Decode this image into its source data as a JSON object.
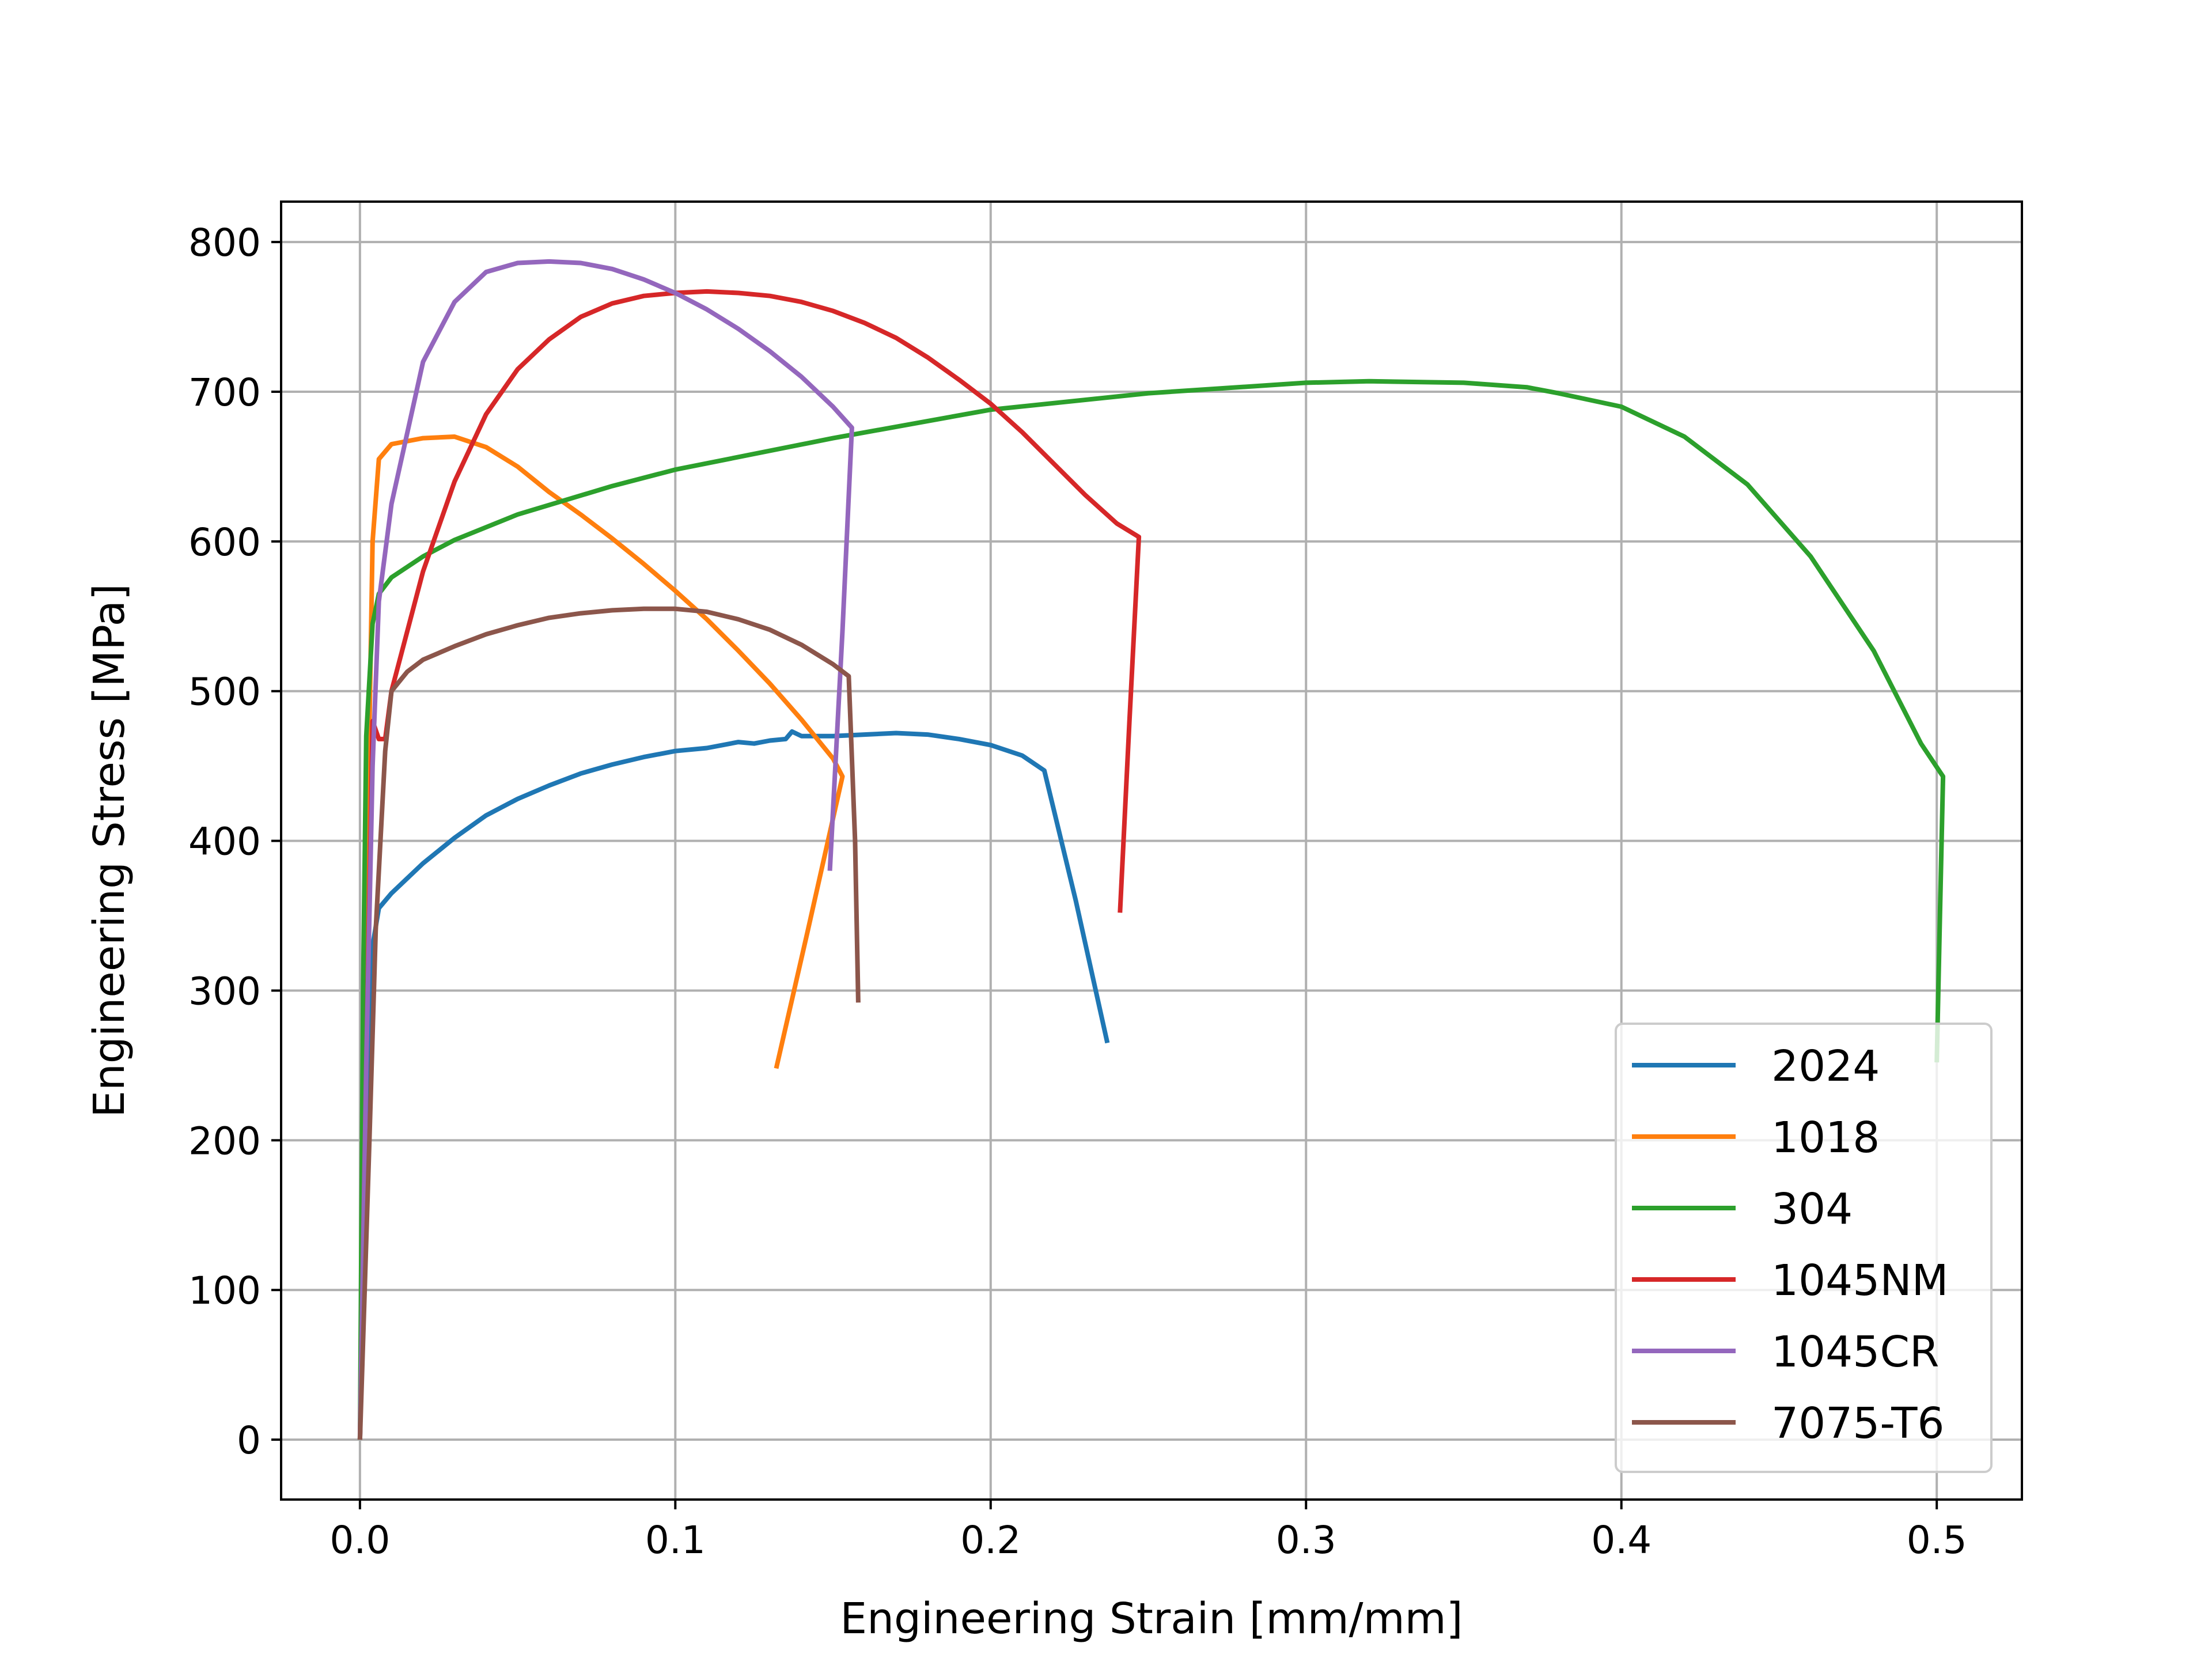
{
  "chart_data": {
    "type": "line",
    "title": "",
    "xlabel": "Engineering Strain [mm/mm]",
    "ylabel": "Engineering Stress [MPa]",
    "xlim": [
      -0.025,
      0.527
    ],
    "ylim": [
      -40,
      827
    ],
    "grid": true,
    "legend_position": "lower-right",
    "x_ticks": [
      0.0,
      0.1,
      0.2,
      0.3,
      0.4,
      0.5
    ],
    "x_tick_labels": [
      "0.0",
      "0.1",
      "0.2",
      "0.3",
      "0.4",
      "0.5"
    ],
    "y_ticks": [
      0,
      100,
      200,
      300,
      400,
      500,
      600,
      700,
      800
    ],
    "y_tick_labels": [
      "0",
      "100",
      "200",
      "300",
      "400",
      "500",
      "600",
      "700",
      "800"
    ],
    "series": [
      {
        "name": "2024",
        "color": "#1f77b4",
        "points": [
          [
            0,
            0
          ],
          [
            0.002,
            200
          ],
          [
            0.004,
            330
          ],
          [
            0.006,
            355
          ],
          [
            0.01,
            365
          ],
          [
            0.02,
            385
          ],
          [
            0.03,
            402
          ],
          [
            0.04,
            417
          ],
          [
            0.05,
            428
          ],
          [
            0.06,
            437
          ],
          [
            0.07,
            445
          ],
          [
            0.08,
            451
          ],
          [
            0.09,
            456
          ],
          [
            0.1,
            460
          ],
          [
            0.11,
            462
          ],
          [
            0.12,
            466
          ],
          [
            0.125,
            465
          ],
          [
            0.13,
            467
          ],
          [
            0.135,
            468
          ],
          [
            0.137,
            473
          ],
          [
            0.14,
            470
          ],
          [
            0.15,
            470
          ],
          [
            0.16,
            471
          ],
          [
            0.17,
            472
          ],
          [
            0.18,
            471
          ],
          [
            0.19,
            468
          ],
          [
            0.2,
            464
          ],
          [
            0.21,
            457
          ],
          [
            0.217,
            447
          ],
          [
            0.227,
            360
          ],
          [
            0.237,
            265
          ]
        ]
      },
      {
        "name": "1018",
        "color": "#ff7f0e",
        "points": [
          [
            0,
            0
          ],
          [
            0.002,
            350
          ],
          [
            0.004,
            600
          ],
          [
            0.006,
            655
          ],
          [
            0.01,
            665
          ],
          [
            0.02,
            669
          ],
          [
            0.03,
            670
          ],
          [
            0.04,
            663
          ],
          [
            0.05,
            650
          ],
          [
            0.06,
            633
          ],
          [
            0.07,
            618
          ],
          [
            0.08,
            602
          ],
          [
            0.09,
            585
          ],
          [
            0.1,
            567
          ],
          [
            0.11,
            548
          ],
          [
            0.12,
            527
          ],
          [
            0.13,
            505
          ],
          [
            0.14,
            481
          ],
          [
            0.15,
            455
          ],
          [
            0.153,
            443
          ],
          [
            0.142,
            340
          ],
          [
            0.132,
            248
          ]
        ]
      },
      {
        "name": "304",
        "color": "#2ca02c",
        "points": [
          [
            0,
            0
          ],
          [
            0.001,
            300
          ],
          [
            0.002,
            470
          ],
          [
            0.004,
            545
          ],
          [
            0.006,
            565
          ],
          [
            0.01,
            576
          ],
          [
            0.02,
            590
          ],
          [
            0.03,
            601
          ],
          [
            0.05,
            618
          ],
          [
            0.08,
            637
          ],
          [
            0.1,
            648
          ],
          [
            0.15,
            669
          ],
          [
            0.2,
            688
          ],
          [
            0.25,
            699
          ],
          [
            0.3,
            706
          ],
          [
            0.32,
            707
          ],
          [
            0.35,
            706
          ],
          [
            0.37,
            703
          ],
          [
            0.38,
            699
          ],
          [
            0.4,
            690
          ],
          [
            0.42,
            670
          ],
          [
            0.44,
            638
          ],
          [
            0.46,
            590
          ],
          [
            0.48,
            527
          ],
          [
            0.495,
            465
          ],
          [
            0.502,
            443
          ],
          [
            0.501,
            350
          ],
          [
            0.5,
            252
          ]
        ]
      },
      {
        "name": "1045NM",
        "color": "#d62728",
        "points": [
          [
            0,
            0
          ],
          [
            0.002,
            250
          ],
          [
            0.004,
            480
          ],
          [
            0.006,
            468
          ],
          [
            0.008,
            468
          ],
          [
            0.01,
            500
          ],
          [
            0.02,
            580
          ],
          [
            0.03,
            640
          ],
          [
            0.04,
            685
          ],
          [
            0.05,
            715
          ],
          [
            0.06,
            735
          ],
          [
            0.07,
            750
          ],
          [
            0.08,
            759
          ],
          [
            0.09,
            764
          ],
          [
            0.1,
            766
          ],
          [
            0.11,
            767
          ],
          [
            0.12,
            766
          ],
          [
            0.13,
            764
          ],
          [
            0.14,
            760
          ],
          [
            0.15,
            754
          ],
          [
            0.16,
            746
          ],
          [
            0.17,
            736
          ],
          [
            0.18,
            723
          ],
          [
            0.19,
            708
          ],
          [
            0.2,
            692
          ],
          [
            0.21,
            673
          ],
          [
            0.22,
            652
          ],
          [
            0.23,
            631
          ],
          [
            0.24,
            612
          ],
          [
            0.247,
            603
          ],
          [
            0.244,
            480
          ],
          [
            0.241,
            352
          ]
        ]
      },
      {
        "name": "1045CR",
        "color": "#9467bd",
        "points": [
          [
            0,
            0
          ],
          [
            0.002,
            250
          ],
          [
            0.004,
            450
          ],
          [
            0.006,
            560
          ],
          [
            0.01,
            625
          ],
          [
            0.02,
            720
          ],
          [
            0.03,
            760
          ],
          [
            0.04,
            780
          ],
          [
            0.05,
            786
          ],
          [
            0.06,
            787
          ],
          [
            0.07,
            786
          ],
          [
            0.08,
            782
          ],
          [
            0.09,
            775
          ],
          [
            0.1,
            766
          ],
          [
            0.11,
            755
          ],
          [
            0.12,
            742
          ],
          [
            0.13,
            727
          ],
          [
            0.14,
            710
          ],
          [
            0.15,
            690
          ],
          [
            0.156,
            676
          ],
          [
            0.153,
            540
          ],
          [
            0.149,
            380
          ]
        ]
      },
      {
        "name": "7075-T6",
        "color": "#8c564b",
        "points": [
          [
            0,
            0
          ],
          [
            0.003,
            200
          ],
          [
            0.005,
            340
          ],
          [
            0.008,
            460
          ],
          [
            0.01,
            500
          ],
          [
            0.015,
            513
          ],
          [
            0.02,
            521
          ],
          [
            0.03,
            530
          ],
          [
            0.04,
            538
          ],
          [
            0.05,
            544
          ],
          [
            0.06,
            549
          ],
          [
            0.07,
            552
          ],
          [
            0.08,
            554
          ],
          [
            0.09,
            555
          ],
          [
            0.1,
            555
          ],
          [
            0.11,
            553
          ],
          [
            0.12,
            548
          ],
          [
            0.13,
            541
          ],
          [
            0.14,
            531
          ],
          [
            0.15,
            518
          ],
          [
            0.155,
            510
          ],
          [
            0.157,
            400
          ],
          [
            0.158,
            292
          ]
        ]
      }
    ]
  }
}
